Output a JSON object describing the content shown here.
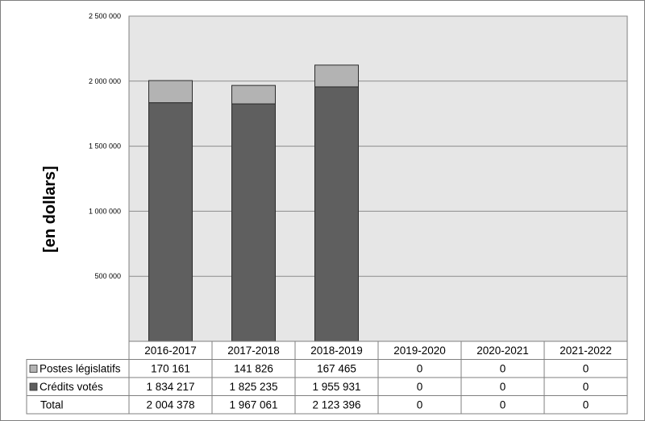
{
  "colors": {
    "plot_bg": "#e6e6e6",
    "postes": "#b3b3b3",
    "credits": "#5f5f5f",
    "grid": "#8c8c8c",
    "border": "#7f7f7f"
  },
  "chart_data": {
    "type": "bar",
    "stacked": true,
    "ylabel": "[en dollars]",
    "ylim": [
      0,
      2500000
    ],
    "yticks": [
      "500 000",
      "1 000 000",
      "1 500 000",
      "2 000 000",
      "2 500 000"
    ],
    "ytick_values": [
      500000,
      1000000,
      1500000,
      2000000,
      2500000
    ],
    "grid": true,
    "legend": "table-left",
    "categories": [
      "2016-2017",
      "2017-2018",
      "2018-2019",
      "2019-2020",
      "2020-2021",
      "2021-2022"
    ],
    "series": [
      {
        "name": "Crédits votés",
        "values": [
          1834217,
          1825235,
          1955931,
          0,
          0,
          0
        ],
        "labels": [
          "1 834 217",
          "1 825 235",
          "1 955 931",
          "0",
          "0",
          "0"
        ]
      },
      {
        "name": "Postes législatifs",
        "values": [
          170161,
          141826,
          167465,
          0,
          0,
          0
        ],
        "labels": [
          "170 161",
          "141 826",
          "167 465",
          "0",
          "0",
          "0"
        ]
      }
    ],
    "total": {
      "name": "Total",
      "labels": [
        "2 004 378",
        "1 967 061",
        "2 123 396",
        "0",
        "0",
        "0"
      ]
    }
  }
}
